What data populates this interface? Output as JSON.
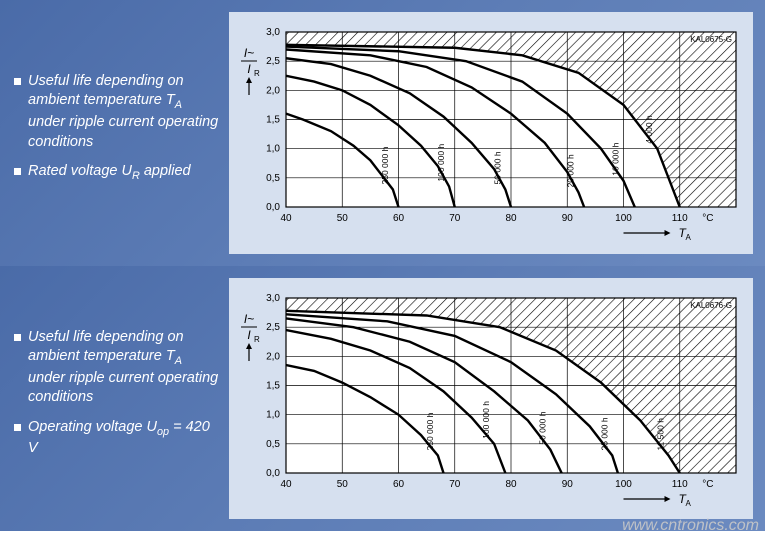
{
  "watermark": "www.cntronics.com",
  "top": {
    "bullets": [
      "Useful life depending on ambient temperature T_A under ripple current operating conditions",
      "Rated voltage U_R applied"
    ],
    "chart": {
      "type": "line",
      "code": "KAL0675-G",
      "background_color": "#d6e0ef",
      "plot_bg": "#ffffff",
      "grid_color": "#000000",
      "line_color": "#000000",
      "line_width": 2.4,
      "hatch_color": "#000000",
      "xlabel": "T_A",
      "ylabel": "I~ / I_R",
      "xlim": [
        40,
        120
      ],
      "ylim": [
        0,
        3.0
      ],
      "xtick_step": 10,
      "ytick_step": 0.5,
      "xunit": "°C",
      "label_fontsize": 10,
      "curves": [
        {
          "label": "250 000 h",
          "pts": [
            [
              40,
              1.6
            ],
            [
              43,
              1.5
            ],
            [
              48,
              1.3
            ],
            [
              52,
              1.05
            ],
            [
              55,
              0.8
            ],
            [
              57,
              0.55
            ],
            [
              59,
              0.3
            ],
            [
              60,
              0.0
            ]
          ]
        },
        {
          "label": "100 000 h",
          "pts": [
            [
              40,
              2.25
            ],
            [
              45,
              2.15
            ],
            [
              50,
              2.0
            ],
            [
              55,
              1.75
            ],
            [
              60,
              1.4
            ],
            [
              64,
              1.05
            ],
            [
              67,
              0.7
            ],
            [
              69,
              0.35
            ],
            [
              70,
              0.0
            ]
          ]
        },
        {
          "label": "50 000 h",
          "pts": [
            [
              40,
              2.55
            ],
            [
              48,
              2.45
            ],
            [
              55,
              2.25
            ],
            [
              62,
              1.95
            ],
            [
              68,
              1.55
            ],
            [
              73,
              1.1
            ],
            [
              77,
              0.65
            ],
            [
              79,
              0.3
            ],
            [
              80,
              0.0
            ]
          ]
        },
        {
          "label": "20 000 h",
          "pts": [
            [
              40,
              2.7
            ],
            [
              55,
              2.6
            ],
            [
              65,
              2.4
            ],
            [
              73,
              2.05
            ],
            [
              80,
              1.6
            ],
            [
              86,
              1.1
            ],
            [
              90,
              0.6
            ],
            [
              92,
              0.25
            ],
            [
              93,
              0.0
            ]
          ]
        },
        {
          "label": "10 000 h",
          "pts": [
            [
              40,
              2.75
            ],
            [
              60,
              2.67
            ],
            [
              72,
              2.5
            ],
            [
              82,
              2.15
            ],
            [
              90,
              1.6
            ],
            [
              96,
              1.0
            ],
            [
              100,
              0.45
            ],
            [
              102,
              0.0
            ]
          ]
        },
        {
          "label": "4 000 h",
          "pts": [
            [
              40,
              2.78
            ],
            [
              70,
              2.73
            ],
            [
              82,
              2.6
            ],
            [
              92,
              2.3
            ],
            [
              100,
              1.75
            ],
            [
              106,
              1.0
            ],
            [
              110,
              0.0
            ]
          ]
        }
      ]
    }
  },
  "bottom": {
    "bullets": [
      "Useful life depending on ambient temperature T_A under ripple current operating conditions",
      "Operating voltage U_op = 420 V"
    ],
    "chart": {
      "type": "line",
      "code": "KAL0676-G",
      "background_color": "#d6e0ef",
      "plot_bg": "#ffffff",
      "grid_color": "#000000",
      "line_color": "#000000",
      "line_width": 2.4,
      "hatch_color": "#000000",
      "xlabel": "T_A",
      "ylabel": "I~ / I_R",
      "xlim": [
        40,
        120
      ],
      "ylim": [
        0,
        3.0
      ],
      "xtick_step": 10,
      "ytick_step": 0.5,
      "xunit": "°C",
      "label_fontsize": 10,
      "curves": [
        {
          "label": "250 000 h",
          "pts": [
            [
              40,
              1.85
            ],
            [
              45,
              1.75
            ],
            [
              50,
              1.55
            ],
            [
              55,
              1.3
            ],
            [
              60,
              1.0
            ],
            [
              64,
              0.65
            ],
            [
              67,
              0.3
            ],
            [
              68,
              0.0
            ]
          ]
        },
        {
          "label": "100 000 h",
          "pts": [
            [
              40,
              2.45
            ],
            [
              48,
              2.3
            ],
            [
              55,
              2.1
            ],
            [
              62,
              1.8
            ],
            [
              68,
              1.4
            ],
            [
              73,
              0.95
            ],
            [
              77,
              0.5
            ],
            [
              79,
              0.0
            ]
          ]
        },
        {
          "label": "50 000 h",
          "pts": [
            [
              40,
              2.65
            ],
            [
              52,
              2.5
            ],
            [
              62,
              2.25
            ],
            [
              70,
              1.9
            ],
            [
              77,
              1.4
            ],
            [
              83,
              0.9
            ],
            [
              87,
              0.4
            ],
            [
              89,
              0.0
            ]
          ]
        },
        {
          "label": "25 000 h",
          "pts": [
            [
              40,
              2.72
            ],
            [
              58,
              2.6
            ],
            [
              70,
              2.35
            ],
            [
              80,
              1.9
            ],
            [
              88,
              1.35
            ],
            [
              94,
              0.8
            ],
            [
              98,
              0.3
            ],
            [
              99,
              0.0
            ]
          ]
        },
        {
          "label": "11 500 h",
          "pts": [
            [
              40,
              2.78
            ],
            [
              65,
              2.7
            ],
            [
              78,
              2.5
            ],
            [
              88,
              2.1
            ],
            [
              96,
              1.55
            ],
            [
              103,
              0.9
            ],
            [
              108,
              0.3
            ],
            [
              110,
              0.0
            ]
          ]
        }
      ]
    }
  }
}
